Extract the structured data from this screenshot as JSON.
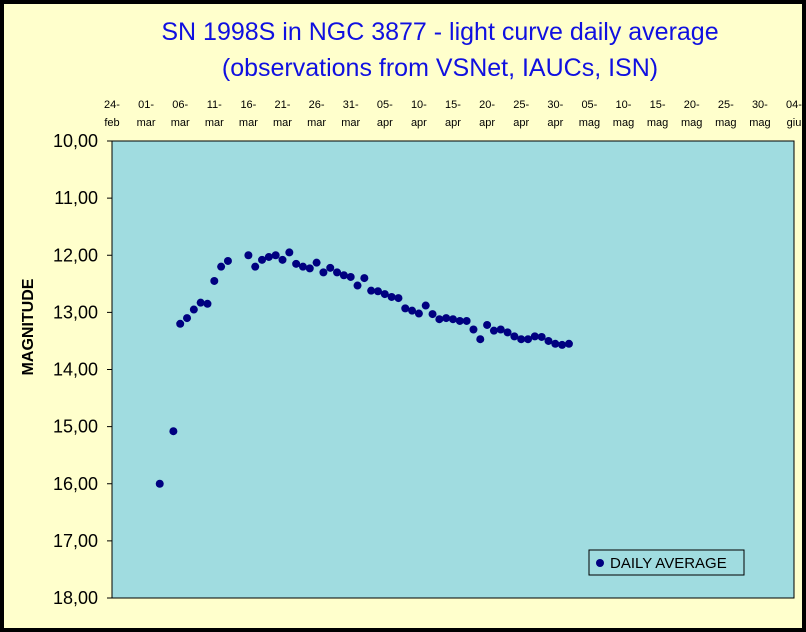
{
  "chart_data": {
    "type": "scatter",
    "title": [
      "SN 1998S in NGC 3877 - light curve daily average",
      "(observations from VSNet, IAUCs, ISN)"
    ],
    "xlabel": "",
    "ylabel": "MAGNITUDE",
    "x_axis_position": "top",
    "y_inverted": true,
    "x_tick_labels": [
      [
        "24-",
        "feb"
      ],
      [
        "01-",
        "mar"
      ],
      [
        "06-",
        "mar"
      ],
      [
        "11-",
        "mar"
      ],
      [
        "16-",
        "mar"
      ],
      [
        "21-",
        "mar"
      ],
      [
        "26-",
        "mar"
      ],
      [
        "31-",
        "mar"
      ],
      [
        "05-",
        "apr"
      ],
      [
        "10-",
        "apr"
      ],
      [
        "15-",
        "apr"
      ],
      [
        "20-",
        "apr"
      ],
      [
        "25-",
        "apr"
      ],
      [
        "30-",
        "apr"
      ],
      [
        "05-",
        "mag"
      ],
      [
        "10-",
        "mag"
      ],
      [
        "15-",
        "mag"
      ],
      [
        "20-",
        "mag"
      ],
      [
        "25-",
        "mag"
      ],
      [
        "30-",
        "mag"
      ],
      [
        "04-",
        "giu"
      ]
    ],
    "x_ticks": [
      "1998-02-24",
      "1998-03-01",
      "1998-03-06",
      "1998-03-11",
      "1998-03-16",
      "1998-03-21",
      "1998-03-26",
      "1998-03-31",
      "1998-04-05",
      "1998-04-10",
      "1998-04-15",
      "1998-04-20",
      "1998-04-25",
      "1998-04-30",
      "1998-05-05",
      "1998-05-10",
      "1998-05-15",
      "1998-05-20",
      "1998-05-25",
      "1998-05-30",
      "1998-06-04"
    ],
    "xlim": [
      "1998-02-24",
      "1998-06-04"
    ],
    "y_tick_labels": [
      "10,00",
      "11,00",
      "12,00",
      "13,00",
      "14,00",
      "15,00",
      "16,00",
      "17,00",
      "18,00"
    ],
    "ylim": [
      10,
      18
    ],
    "grid": false,
    "legend": "bottom-right",
    "colors": {
      "plot_area": "#A0DCE0",
      "background": "#FFFFCC",
      "marker": "#000080",
      "title": "#1010E0",
      "outer": "#000000"
    },
    "series": [
      {
        "name": "DAILY AVERAGE",
        "points": [
          {
            "x": "1998-03-03",
            "y": 16.0
          },
          {
            "x": "1998-03-05",
            "y": 15.08
          },
          {
            "x": "1998-03-06",
            "y": 13.2
          },
          {
            "x": "1998-03-07",
            "y": 13.1
          },
          {
            "x": "1998-03-08",
            "y": 12.95
          },
          {
            "x": "1998-03-09",
            "y": 12.83
          },
          {
            "x": "1998-03-10",
            "y": 12.85
          },
          {
            "x": "1998-03-11",
            "y": 12.45
          },
          {
            "x": "1998-03-12",
            "y": 12.2
          },
          {
            "x": "1998-03-13",
            "y": 12.1
          },
          {
            "x": "1998-03-16",
            "y": 12.0
          },
          {
            "x": "1998-03-17",
            "y": 12.2
          },
          {
            "x": "1998-03-18",
            "y": 12.08
          },
          {
            "x": "1998-03-19",
            "y": 12.03
          },
          {
            "x": "1998-03-20",
            "y": 12.0
          },
          {
            "x": "1998-03-21",
            "y": 12.08
          },
          {
            "x": "1998-03-22",
            "y": 11.95
          },
          {
            "x": "1998-03-23",
            "y": 12.15
          },
          {
            "x": "1998-03-24",
            "y": 12.2
          },
          {
            "x": "1998-03-25",
            "y": 12.23
          },
          {
            "x": "1998-03-26",
            "y": 12.13
          },
          {
            "x": "1998-03-27",
            "y": 12.3
          },
          {
            "x": "1998-03-28",
            "y": 12.22
          },
          {
            "x": "1998-03-29",
            "y": 12.3
          },
          {
            "x": "1998-03-30",
            "y": 12.35
          },
          {
            "x": "1998-03-31",
            "y": 12.38
          },
          {
            "x": "1998-04-01",
            "y": 12.53
          },
          {
            "x": "1998-04-02",
            "y": 12.4
          },
          {
            "x": "1998-04-03",
            "y": 12.62
          },
          {
            "x": "1998-04-04",
            "y": 12.63
          },
          {
            "x": "1998-04-05",
            "y": 12.68
          },
          {
            "x": "1998-04-06",
            "y": 12.73
          },
          {
            "x": "1998-04-07",
            "y": 12.75
          },
          {
            "x": "1998-04-08",
            "y": 12.93
          },
          {
            "x": "1998-04-09",
            "y": 12.97
          },
          {
            "x": "1998-04-10",
            "y": 13.02
          },
          {
            "x": "1998-04-11",
            "y": 12.88
          },
          {
            "x": "1998-04-12",
            "y": 13.03
          },
          {
            "x": "1998-04-13",
            "y": 13.12
          },
          {
            "x": "1998-04-14",
            "y": 13.1
          },
          {
            "x": "1998-04-15",
            "y": 13.12
          },
          {
            "x": "1998-04-16",
            "y": 13.15
          },
          {
            "x": "1998-04-17",
            "y": 13.15
          },
          {
            "x": "1998-04-18",
            "y": 13.3
          },
          {
            "x": "1998-04-19",
            "y": 13.47
          },
          {
            "x": "1998-04-20",
            "y": 13.22
          },
          {
            "x": "1998-04-21",
            "y": 13.32
          },
          {
            "x": "1998-04-22",
            "y": 13.3
          },
          {
            "x": "1998-04-23",
            "y": 13.35
          },
          {
            "x": "1998-04-24",
            "y": 13.42
          },
          {
            "x": "1998-04-25",
            "y": 13.47
          },
          {
            "x": "1998-04-26",
            "y": 13.47
          },
          {
            "x": "1998-04-27",
            "y": 13.42
          },
          {
            "x": "1998-04-28",
            "y": 13.43
          },
          {
            "x": "1998-04-29",
            "y": 13.5
          },
          {
            "x": "1998-04-30",
            "y": 13.55
          },
          {
            "x": "1998-05-01",
            "y": 13.57
          },
          {
            "x": "1998-05-02",
            "y": 13.55
          }
        ]
      }
    ]
  }
}
